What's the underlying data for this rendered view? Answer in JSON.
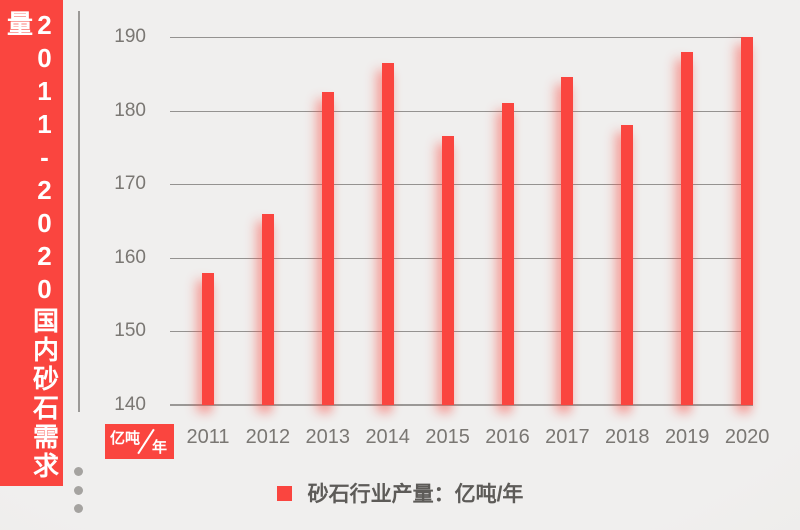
{
  "banner": {
    "title": "2011-2020国内砂石需求量"
  },
  "unit_badge": {
    "numerator": "亿吨",
    "denominator": "年"
  },
  "legend": {
    "label": "砂石行业产量：亿吨/年"
  },
  "colors": {
    "accent_red": "#fa453f",
    "background": "#efeeec",
    "gridline": "#949290",
    "axis_text": "#7a7773",
    "legend_text": "#5d5b58",
    "dot_gray": "#a5a3a0"
  },
  "chart_data": {
    "type": "bar",
    "title": "2011-2020国内砂石需求量",
    "categories": [
      "2011",
      "2012",
      "2013",
      "2014",
      "2015",
      "2016",
      "2017",
      "2018",
      "2019",
      "2020"
    ],
    "values": [
      158,
      166,
      182.5,
      186.5,
      176.5,
      181,
      184.5,
      178,
      188,
      190
    ],
    "series": [
      {
        "name": "砂石行业产量：亿吨/年",
        "values": [
          158,
          166,
          182.5,
          186.5,
          176.5,
          181,
          184.5,
          178,
          188,
          190
        ]
      }
    ],
    "xlabel": "",
    "ylabel": "亿吨/年",
    "ylim": [
      140,
      190
    ],
    "yticks": [
      140,
      150,
      160,
      170,
      180,
      190
    ],
    "grid": true,
    "legend_position": "bottom",
    "bar_color": "#fa453f"
  }
}
